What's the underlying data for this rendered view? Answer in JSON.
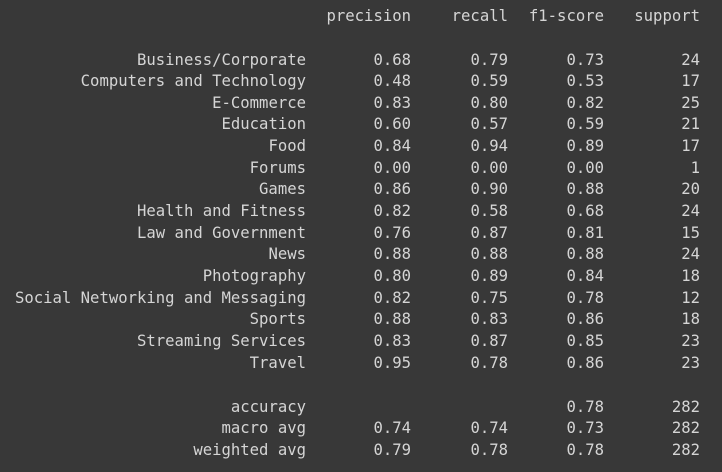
{
  "report": {
    "headers": {
      "precision": "precision",
      "recall": "recall",
      "f1": "f1-score",
      "support": "support"
    },
    "classes": [
      {
        "label": "Business/Corporate",
        "precision": "0.68",
        "recall": "0.79",
        "f1": "0.73",
        "support": "24"
      },
      {
        "label": "Computers and Technology",
        "precision": "0.48",
        "recall": "0.59",
        "f1": "0.53",
        "support": "17"
      },
      {
        "label": "E-Commerce",
        "precision": "0.83",
        "recall": "0.80",
        "f1": "0.82",
        "support": "25"
      },
      {
        "label": "Education",
        "precision": "0.60",
        "recall": "0.57",
        "f1": "0.59",
        "support": "21"
      },
      {
        "label": "Food",
        "precision": "0.84",
        "recall": "0.94",
        "f1": "0.89",
        "support": "17"
      },
      {
        "label": "Forums",
        "precision": "0.00",
        "recall": "0.00",
        "f1": "0.00",
        "support": "1"
      },
      {
        "label": "Games",
        "precision": "0.86",
        "recall": "0.90",
        "f1": "0.88",
        "support": "20"
      },
      {
        "label": "Health and Fitness",
        "precision": "0.82",
        "recall": "0.58",
        "f1": "0.68",
        "support": "24"
      },
      {
        "label": "Law and Government",
        "precision": "0.76",
        "recall": "0.87",
        "f1": "0.81",
        "support": "15"
      },
      {
        "label": "News",
        "precision": "0.88",
        "recall": "0.88",
        "f1": "0.88",
        "support": "24"
      },
      {
        "label": "Photography",
        "precision": "0.80",
        "recall": "0.89",
        "f1": "0.84",
        "support": "18"
      },
      {
        "label": "Social Networking and Messaging",
        "precision": "0.82",
        "recall": "0.75",
        "f1": "0.78",
        "support": "12"
      },
      {
        "label": "Sports",
        "precision": "0.88",
        "recall": "0.83",
        "f1": "0.86",
        "support": "18"
      },
      {
        "label": "Streaming Services",
        "precision": "0.83",
        "recall": "0.87",
        "f1": "0.85",
        "support": "23"
      },
      {
        "label": "Travel",
        "precision": "0.95",
        "recall": "0.78",
        "f1": "0.86",
        "support": "23"
      }
    ],
    "summary": [
      {
        "label": "accuracy",
        "precision": "",
        "recall": "",
        "f1": "0.78",
        "support": "282"
      },
      {
        "label": "macro avg",
        "precision": "0.74",
        "recall": "0.74",
        "f1": "0.73",
        "support": "282"
      },
      {
        "label": "weighted avg",
        "precision": "0.79",
        "recall": "0.78",
        "f1": "0.78",
        "support": "282"
      }
    ]
  },
  "theme": {
    "background": "#383838",
    "text": "#d5d5d5"
  }
}
